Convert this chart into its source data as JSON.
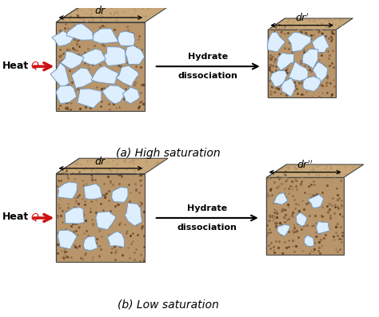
{
  "title_a": "(a) High saturation",
  "title_b": "(b) Low saturation",
  "arrow_label_line1": "Hydrate",
  "arrow_label_line2": "dissociation",
  "sand_color_front": "#b8956a",
  "sand_color_top": "#c8a878",
  "sand_color_left": "#9a7a52",
  "sand_color_right": "#a88060",
  "hydrate_fill": "#ddeeff",
  "hydrate_edge": "#7799bb",
  "cube_edge_color": "#444444",
  "arrow_red": "#cc1111",
  "bg_color": "#ffffff",
  "figw": 4.74,
  "figh": 3.97,
  "dpi": 100
}
